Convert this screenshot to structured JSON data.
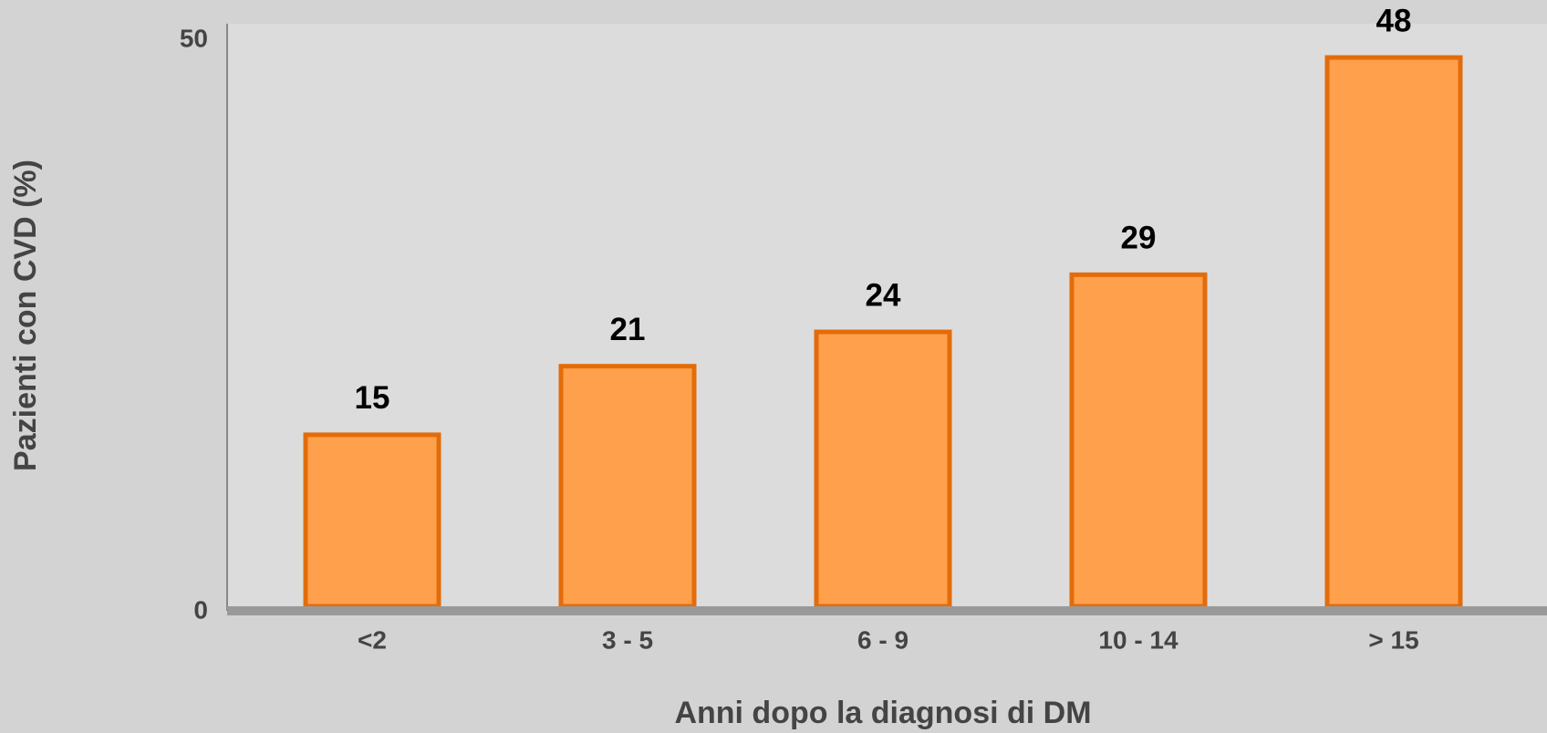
{
  "chart_data": {
    "type": "bar",
    "x_label": "Anni dopo la diagnosi di DM",
    "y_label": "Pazienti con CVD (%)",
    "categories": [
      "<2",
      "3 - 5",
      "6 - 9",
      "10 - 14",
      "> 15"
    ],
    "values": [
      15,
      21,
      24,
      29,
      48
    ],
    "color": "#ffa04d",
    "edge_color": "#e36c0a",
    "ylim": [
      0,
      50
    ],
    "yticks": [
      0,
      50
    ],
    "grid": false
  }
}
